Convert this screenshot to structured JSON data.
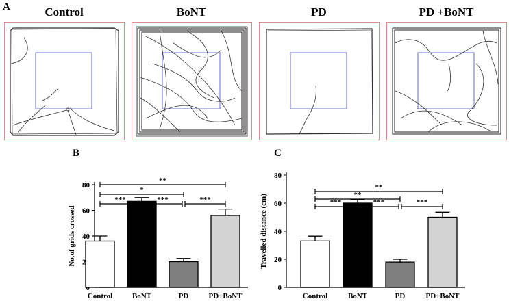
{
  "figure": {
    "panel_a_label": "A",
    "panel_b_label": "B",
    "panel_c_label": "C",
    "arena_titles": [
      "Control",
      "BoNT",
      "PD",
      "PD +BoNT"
    ],
    "colors": {
      "arena_frame": "#e58a8a",
      "center_zone": "#6b6bd6",
      "track": "#333333"
    }
  },
  "chart_data": [
    {
      "type": "bar",
      "panel": "B",
      "title": "",
      "xlabel": "",
      "ylabel": "No.of grids crossed",
      "categories": [
        "Control",
        "BoNT",
        "PD",
        "PD+BoNT"
      ],
      "values": [
        36,
        67,
        20,
        56
      ],
      "errors": [
        4,
        3,
        2.5,
        5
      ],
      "bar_colors": [
        "#ffffff",
        "#000000",
        "#7f7f7f",
        "#d3d3d3"
      ],
      "ylim": [
        0,
        80
      ],
      "yticks": [
        0,
        20,
        40,
        60,
        80
      ],
      "significance": [
        {
          "from": 0,
          "to": 1,
          "label": "***",
          "level": 1
        },
        {
          "from": 1,
          "to": 2,
          "label": "***",
          "level": 1
        },
        {
          "from": 2,
          "to": 3,
          "label": "***",
          "level": 1
        },
        {
          "from": 0,
          "to": 2,
          "label": "*",
          "level": 2
        },
        {
          "from": 0,
          "to": 3,
          "label": "**",
          "level": 3
        }
      ]
    },
    {
      "type": "bar",
      "panel": "C",
      "title": "",
      "xlabel": "",
      "ylabel": "Travelled distance (cm)",
      "categories": [
        "Control",
        "BoNT",
        "PD",
        "PD+BoNT"
      ],
      "values": [
        33,
        60,
        18,
        50
      ],
      "errors": [
        3.5,
        2.5,
        2,
        3.5
      ],
      "bar_colors": [
        "#ffffff",
        "#000000",
        "#7f7f7f",
        "#d3d3d3"
      ],
      "ylim": [
        0,
        80
      ],
      "yticks": [
        0,
        20,
        40,
        60,
        80
      ],
      "significance": [
        {
          "from": 0,
          "to": 1,
          "label": "***",
          "level": 1
        },
        {
          "from": 1,
          "to": 2,
          "label": "***",
          "level": 1
        },
        {
          "from": 2,
          "to": 3,
          "label": "***",
          "level": 1
        },
        {
          "from": 0,
          "to": 2,
          "label": "**",
          "level": 2
        },
        {
          "from": 0,
          "to": 3,
          "label": "**",
          "level": 3
        }
      ]
    }
  ]
}
